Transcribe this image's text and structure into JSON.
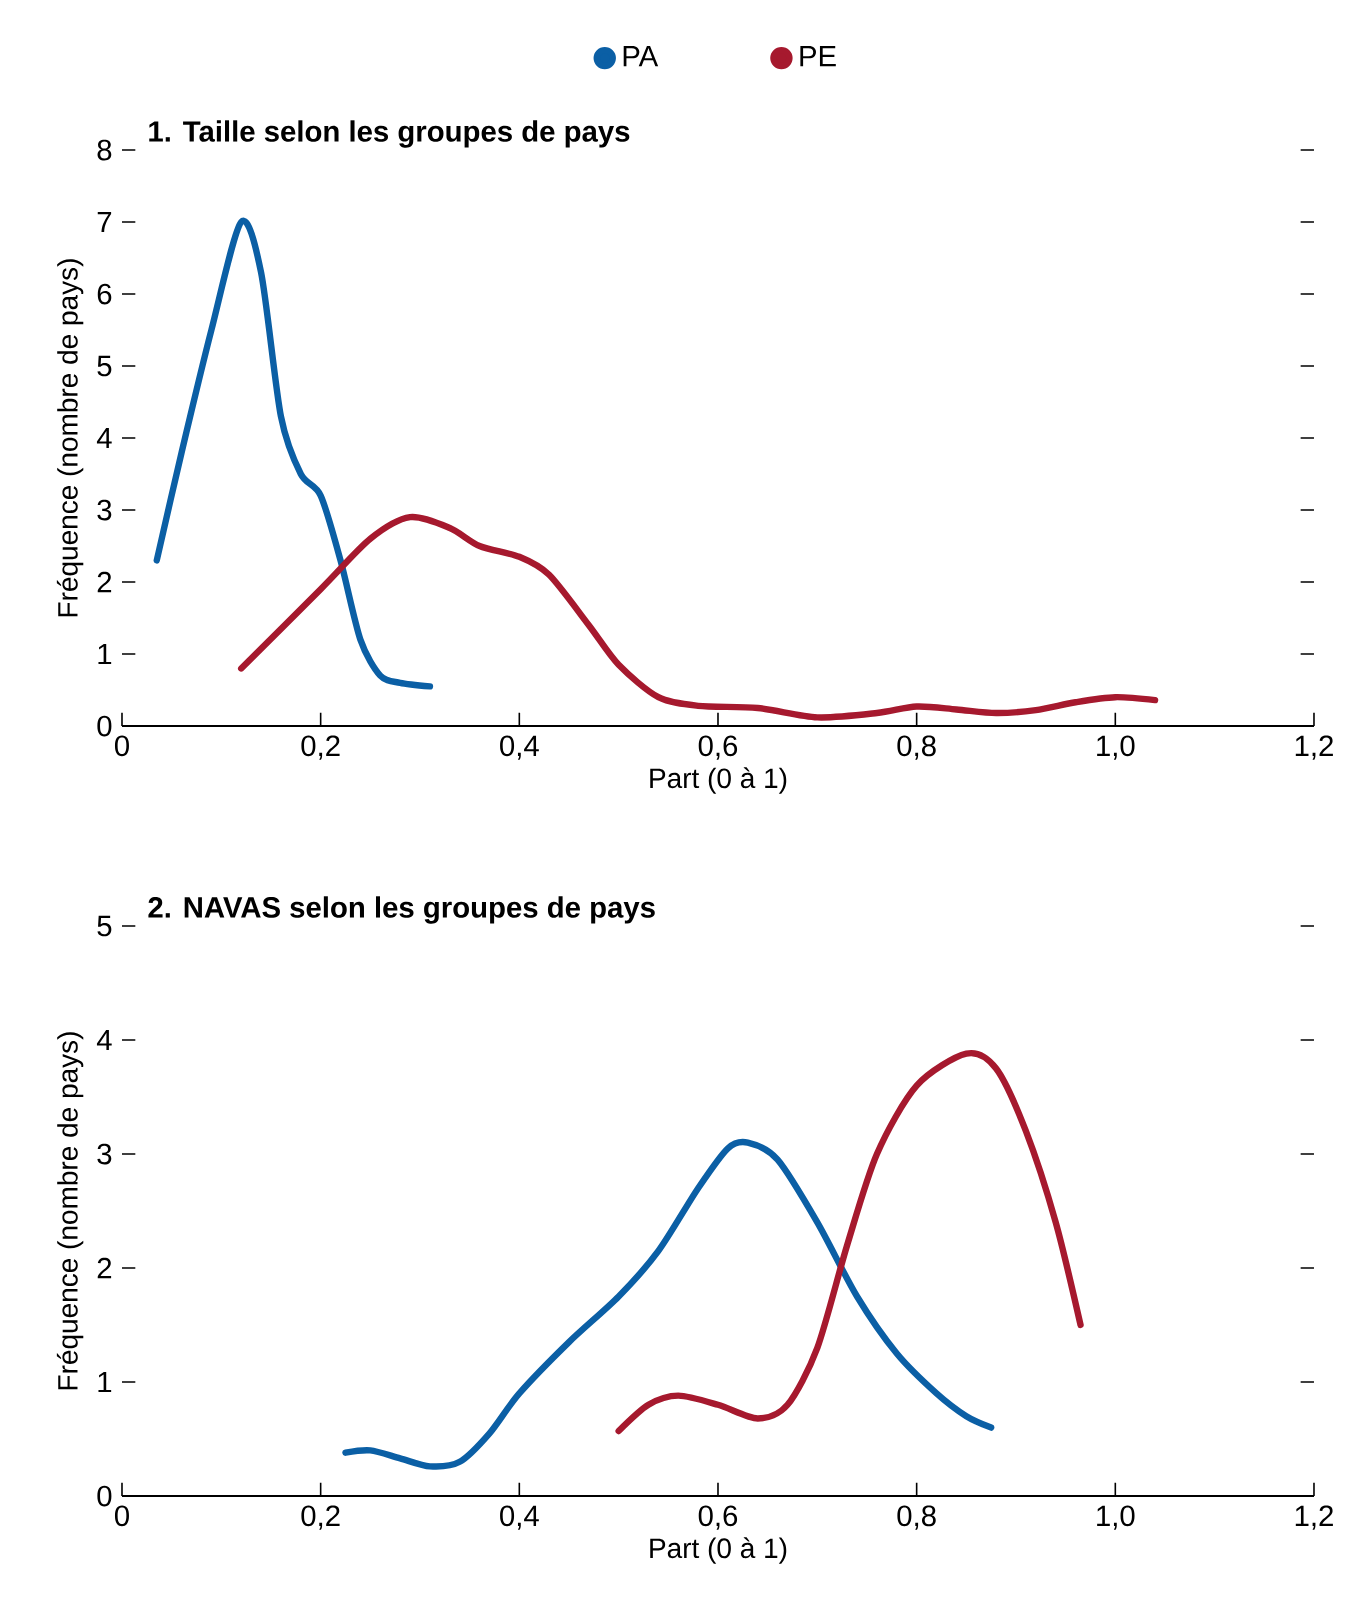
{
  "chart_data": [
    {
      "type": "line",
      "title": "1. Taille selon les groupes de pays",
      "xlabel": "Part (0 à 1)",
      "ylabel": "Fréquence (nombre de pays)",
      "xlim": [
        0,
        1.2
      ],
      "ylim": [
        0,
        8
      ],
      "xticks": [
        0,
        {
          "value": 0.2,
          "label": "0,2"
        },
        {
          "value": 0.4,
          "label": "0,4"
        },
        {
          "value": 0.6,
          "label": "0,6"
        },
        {
          "value": 0.8,
          "label": "0,8"
        },
        {
          "value": 1.0,
          "label": "1,0"
        },
        {
          "value": 1.2,
          "label": "1,2"
        }
      ],
      "yticks": [
        0,
        1,
        2,
        3,
        4,
        5,
        6,
        7,
        8
      ],
      "legend": "top",
      "series": [
        {
          "name": "PA",
          "color": "#0b5fa5",
          "x": [
            0.035,
            0.06,
            0.09,
            0.12,
            0.14,
            0.16,
            0.18,
            0.2,
            0.22,
            0.24,
            0.26,
            0.28,
            0.31
          ],
          "values": [
            2.3,
            3.8,
            5.5,
            7.0,
            6.3,
            4.3,
            3.5,
            3.2,
            2.3,
            1.2,
            0.7,
            0.6,
            0.55
          ]
        },
        {
          "name": "PE",
          "color": "#a6192e",
          "x": [
            0.12,
            0.2,
            0.25,
            0.29,
            0.33,
            0.36,
            0.4,
            0.43,
            0.47,
            0.5,
            0.54,
            0.58,
            0.64,
            0.7,
            0.76,
            0.8,
            0.84,
            0.88,
            0.92,
            0.96,
            1.0,
            1.04
          ],
          "values": [
            0.8,
            1.9,
            2.6,
            2.9,
            2.75,
            2.5,
            2.35,
            2.1,
            1.4,
            0.85,
            0.4,
            0.28,
            0.25,
            0.12,
            0.18,
            0.27,
            0.23,
            0.18,
            0.22,
            0.33,
            0.4,
            0.36
          ]
        }
      ]
    },
    {
      "type": "line",
      "title": "2. NAVAS selon les groupes de pays",
      "xlabel": "Part (0 à 1)",
      "ylabel": "Fréquence (nombre de pays)",
      "xlim": [
        0,
        1.2
      ],
      "ylim": [
        0,
        5
      ],
      "xticks": [
        0,
        {
          "value": 0.2,
          "label": "0,2"
        },
        {
          "value": 0.4,
          "label": "0,4"
        },
        {
          "value": 0.6,
          "label": "0,6"
        },
        {
          "value": 0.8,
          "label": "0,8"
        },
        {
          "value": 1.0,
          "label": "1,0"
        },
        {
          "value": 1.2,
          "label": "1,2"
        }
      ],
      "yticks": [
        0,
        1,
        2,
        3,
        4,
        5
      ],
      "series": [
        {
          "color": "#0b5fa5",
          "x": [
            0.225,
            0.25,
            0.28,
            0.31,
            0.34,
            0.37,
            0.4,
            0.45,
            0.5,
            0.54,
            0.58,
            0.61,
            0.63,
            0.66,
            0.7,
            0.74,
            0.78,
            0.82,
            0.85,
            0.875
          ],
          "values": [
            0.38,
            0.4,
            0.33,
            0.26,
            0.3,
            0.55,
            0.9,
            1.35,
            1.75,
            2.15,
            2.7,
            3.05,
            3.1,
            2.95,
            2.4,
            1.75,
            1.25,
            0.9,
            0.7,
            0.6
          ]
        },
        {
          "color": "#a6192e",
          "x": [
            0.5,
            0.53,
            0.56,
            0.6,
            0.64,
            0.67,
            0.7,
            0.73,
            0.76,
            0.8,
            0.85,
            0.88,
            0.91,
            0.94,
            0.965
          ],
          "values": [
            0.57,
            0.8,
            0.88,
            0.8,
            0.68,
            0.8,
            1.3,
            2.2,
            3.0,
            3.6,
            3.88,
            3.75,
            3.2,
            2.4,
            1.5
          ]
        }
      ]
    }
  ]
}
